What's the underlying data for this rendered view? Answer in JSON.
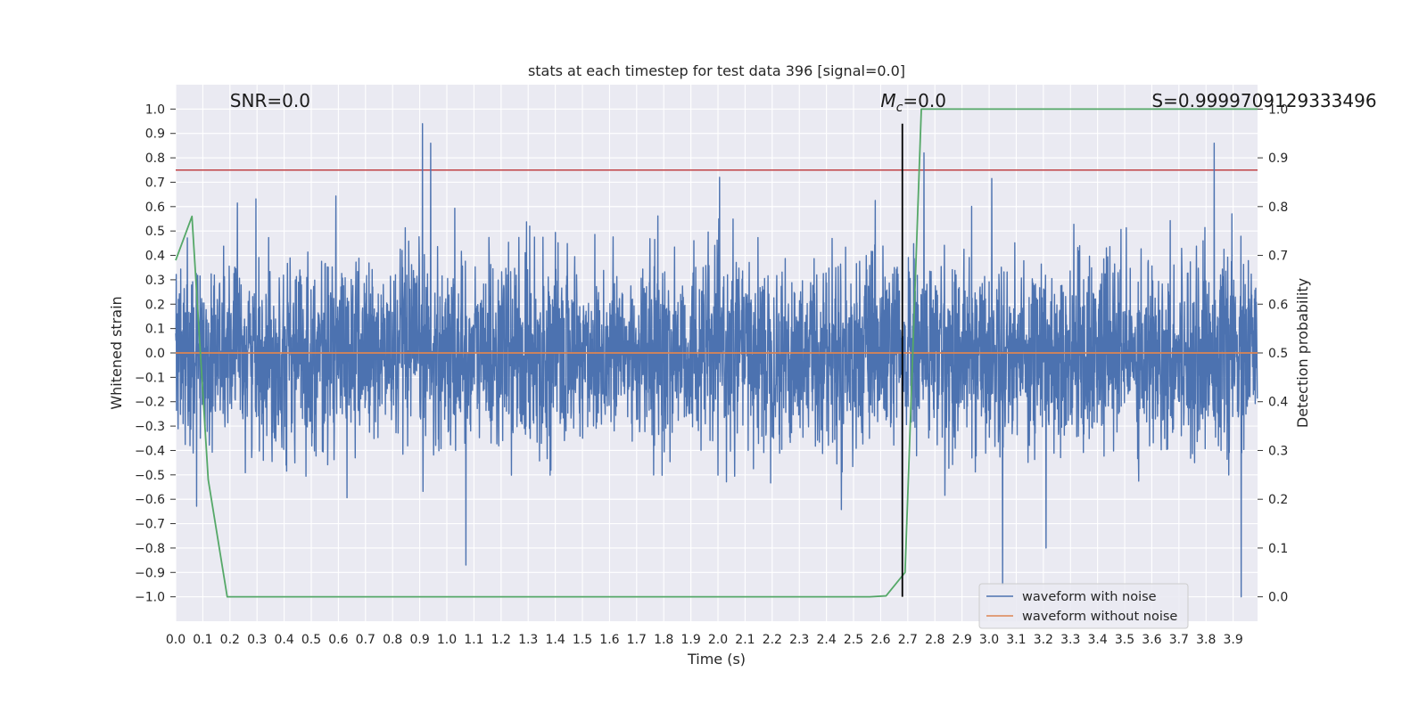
{
  "chart_data": {
    "type": "line",
    "title": "stats at each timestep for test data 396 [signal=0.0]",
    "xlabel": "Time (s)",
    "ylabel": "Whitened strain",
    "y2label": "Detection probability",
    "xlim": [
      0.0,
      3.99
    ],
    "ylim": [
      -1.1,
      1.1
    ],
    "y2lim": [
      -0.05,
      1.05
    ],
    "x_ticks": [
      "0.0",
      "0.1",
      "0.2",
      "0.3",
      "0.4",
      "0.5",
      "0.6",
      "0.7",
      "0.8",
      "0.9",
      "1.0",
      "1.1",
      "1.2",
      "1.3",
      "1.4",
      "1.5",
      "1.6",
      "1.7",
      "1.8",
      "1.9",
      "2.0",
      "2.1",
      "2.2",
      "2.3",
      "2.4",
      "2.5",
      "2.6",
      "2.7",
      "2.8",
      "2.9",
      "3.0",
      "3.1",
      "3.2",
      "3.3",
      "3.4",
      "3.5",
      "3.6",
      "3.7",
      "3.8",
      "3.9"
    ],
    "y_ticks": [
      "1.0",
      "0.9",
      "0.8",
      "0.7",
      "0.6",
      "0.5",
      "0.4",
      "0.3",
      "0.2",
      "0.1",
      "0.0",
      "−0.1",
      "−0.2",
      "−0.3",
      "−0.4",
      "−0.5",
      "−0.6",
      "−0.7",
      "−0.8",
      "−0.9",
      "−1.0"
    ],
    "y2_ticks": [
      "1.0",
      "0.9",
      "0.8",
      "0.7",
      "0.6",
      "0.5",
      "0.4",
      "0.3",
      "0.2",
      "0.1",
      "0.0"
    ],
    "grid": true,
    "legend_position": "lower-right",
    "series": [
      {
        "name": "waveform with noise",
        "axis": "left",
        "color": "#4c72b0",
        "kind": "noise",
        "length": 4096,
        "duration_s": 4.0,
        "typical_amplitude": 0.45,
        "peaks": [
          {
            "x": 0.91,
            "y": 0.94
          },
          {
            "x": 0.94,
            "y": 0.86
          },
          {
            "x": 1.07,
            "y": -0.87
          },
          {
            "x": 3.05,
            "y": -0.95
          },
          {
            "x": 3.83,
            "y": 0.86
          },
          {
            "x": 3.93,
            "y": -1.0
          },
          {
            "x": 3.21,
            "y": -0.8
          },
          {
            "x": 2.68,
            "y": -0.78
          },
          {
            "x": 2.76,
            "y": 0.82
          }
        ]
      },
      {
        "name": "waveform without noise",
        "axis": "left",
        "color": "#dd8452",
        "x": [
          0.0,
          3.99
        ],
        "y": [
          0.0,
          0.0
        ]
      },
      {
        "name": "",
        "axis": "right",
        "color": "#55a868",
        "x": [
          0.0,
          0.06,
          0.12,
          0.19,
          0.25,
          0.31,
          2.56,
          2.62,
          2.69,
          2.75,
          3.99
        ],
        "y": [
          0.69,
          0.78,
          0.24,
          0.0,
          0.0,
          0.0,
          0.0,
          0.002,
          0.05,
          1.0,
          1.0
        ]
      }
    ],
    "hlines": [
      {
        "axis": "left",
        "y": 0.75,
        "color": "#c44e52"
      }
    ],
    "vlines": [
      {
        "x": 2.68,
        "ymin": -1.0,
        "ymax": 0.94,
        "color": "#000000"
      }
    ],
    "annotations": [
      {
        "id": "snr",
        "text": "SNR=0.0",
        "x": 0.2
      },
      {
        "id": "mc",
        "text_prefix": "M",
        "text_sub": "c",
        "text_suffix": "=0.0",
        "x": 2.6
      },
      {
        "id": "s",
        "text": "S=0.9999709129333496",
        "x": 3.6
      }
    ]
  }
}
